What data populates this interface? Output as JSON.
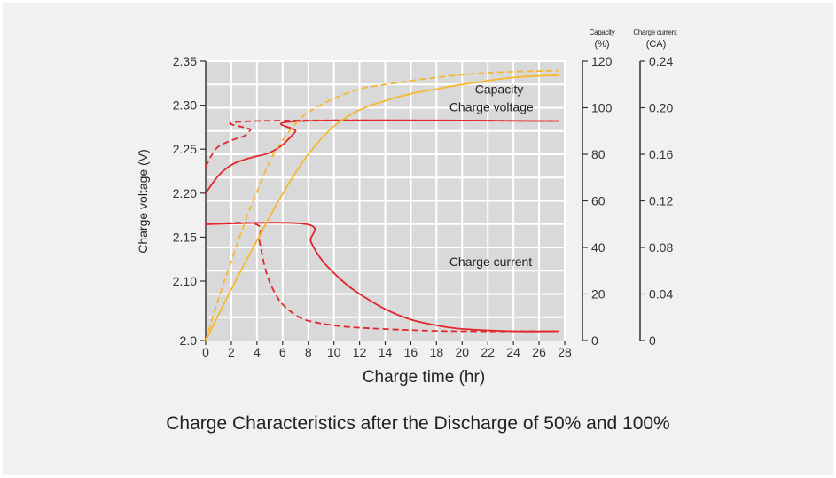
{
  "caption": "Charge Characteristics after the Discharge of 50% and 100%",
  "chart_data": {
    "type": "line",
    "title": "Charge Characteristics after the Discharge of 50% and 100%",
    "xlabel": "Charge time (hr)",
    "xlim": [
      0,
      28
    ],
    "xticks": [
      "0",
      "2",
      "4",
      "6",
      "8",
      "10",
      "12",
      "14",
      "16",
      "18",
      "20",
      "22",
      "24",
      "26",
      "28"
    ],
    "grid": true,
    "colors": {
      "voltage": "#e3262b",
      "current": "#e3262b",
      "capacity": "#f5b82e",
      "plot_bg": "#d9d9d9",
      "grid": "#ffffff"
    },
    "axes": {
      "voltage": {
        "label": "Charge voltage (V)",
        "ylim": [
          2.0,
          2.35
        ],
        "ticks": [
          "2.0",
          "2.10",
          "2.15",
          "2.20",
          "2.25",
          "2.30",
          "2.35"
        ]
      },
      "capacity": {
        "label_line1": "Capacity",
        "label_line2": "(%)",
        "ylim": [
          0,
          120
        ],
        "ticks": [
          "0",
          "20",
          "40",
          "60",
          "80",
          "100",
          "120"
        ]
      },
      "current": {
        "label_line1": "Charge current",
        "label_line2": "(CA)",
        "ylim": [
          0,
          0.24
        ],
        "ticks": [
          "0",
          "0.04",
          "0.08",
          "0.12",
          "0.16",
          "0.20",
          "0.24"
        ]
      }
    },
    "series": [
      {
        "name": "Charge voltage",
        "axis": "voltage",
        "style": "solid",
        "x": [
          0,
          1,
          2,
          3,
          4,
          5,
          6,
          7,
          7.6,
          27.5
        ],
        "y": [
          2.2,
          2.22,
          2.232,
          2.238,
          2.242,
          2.246,
          2.255,
          2.27,
          2.282,
          2.282
        ]
      },
      {
        "name": "Charge voltage",
        "axis": "voltage",
        "style": "dashed",
        "x": [
          0,
          0.5,
          1,
          2,
          3,
          3.5,
          3.9,
          27.5
        ],
        "y": [
          2.23,
          2.244,
          2.253,
          2.26,
          2.265,
          2.272,
          2.282,
          2.282
        ]
      },
      {
        "name": "Charge current",
        "axis": "current",
        "style": "solid",
        "x": [
          0,
          7.8,
          8.2,
          9,
          10,
          11,
          12,
          14,
          16,
          18,
          20,
          24,
          27.5
        ],
        "y": [
          0.1,
          0.1,
          0.085,
          0.07,
          0.058,
          0.048,
          0.04,
          0.027,
          0.018,
          0.013,
          0.01,
          0.008,
          0.008
        ]
      },
      {
        "name": "Charge current",
        "axis": "current",
        "style": "dashed",
        "x": [
          0,
          3.9,
          4.2,
          4.6,
          5,
          5.5,
          6,
          7,
          8,
          10,
          12,
          16,
          20,
          27.5
        ],
        "y": [
          0.1,
          0.1,
          0.085,
          0.064,
          0.05,
          0.039,
          0.031,
          0.022,
          0.017,
          0.013,
          0.011,
          0.009,
          0.008,
          0.008
        ]
      },
      {
        "name": "Capacity",
        "axis": "capacity",
        "style": "solid",
        "x": [
          0,
          2,
          4,
          6,
          8,
          10,
          12,
          14,
          16,
          18,
          20,
          24,
          27.5
        ],
        "y": [
          0,
          22,
          43,
          63,
          80,
          92,
          99,
          103,
          106,
          108,
          110,
          113,
          114
        ]
      },
      {
        "name": "Capacity",
        "axis": "capacity",
        "style": "dashed",
        "x": [
          0,
          1,
          2,
          3,
          4,
          5,
          6,
          7,
          8,
          10,
          12,
          14,
          18,
          22,
          27.5
        ],
        "y": [
          0,
          18,
          34,
          50,
          64,
          77,
          86,
          93,
          98,
          104,
          108,
          110,
          113,
          115,
          116
        ]
      }
    ],
    "annotations": [
      {
        "text": "Capacity",
        "x": 21,
        "voltage_y": 2.313
      },
      {
        "text": "Charge voltage",
        "x": 19,
        "voltage_y": 2.293
      },
      {
        "text": "Charge current",
        "x": 19,
        "voltage_y": 2.117
      }
    ]
  }
}
